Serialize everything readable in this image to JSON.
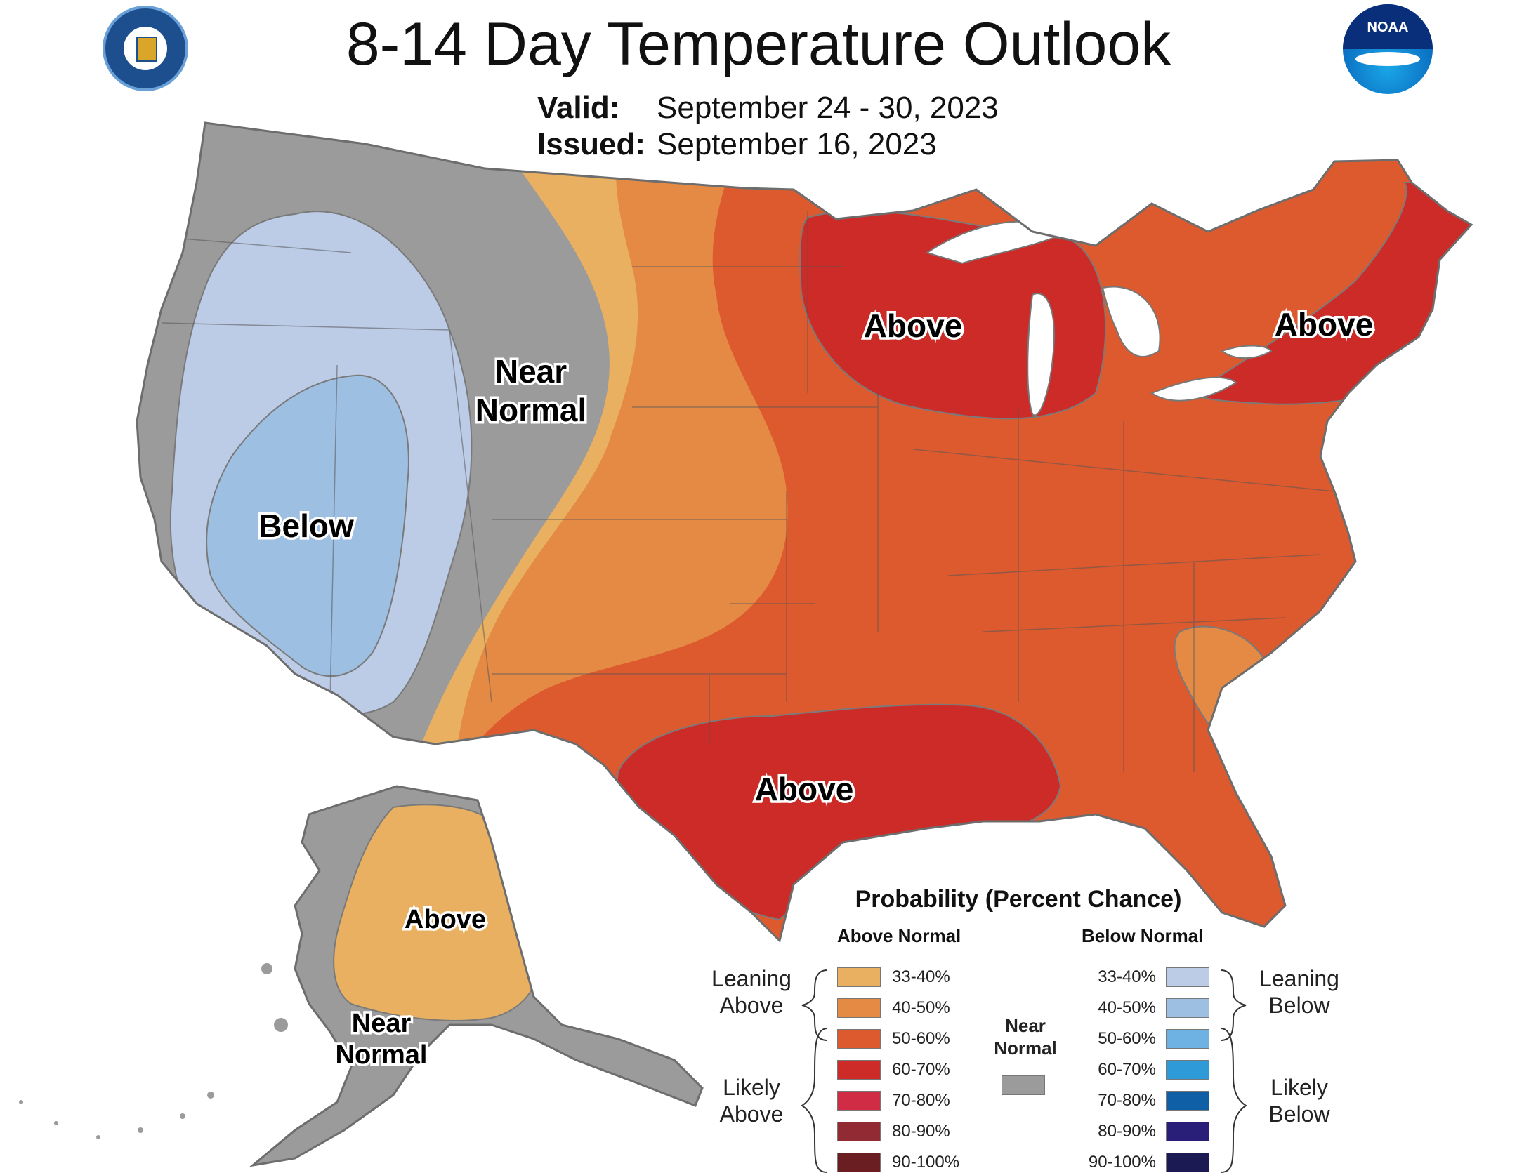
{
  "title": "8-14 Day Temperature Outlook",
  "valid_label": "Valid:",
  "valid_value": "September 24 - 30, 2023",
  "issued_label": "Issued:",
  "issued_value": "September 16, 2023",
  "logos": {
    "left_icon": "department-of-commerce-seal-icon",
    "right_icon": "noaa-logo-icon",
    "noaa_text": "NOAA"
  },
  "map_labels": {
    "below": "Below",
    "near_normal_line1": "Near",
    "near_normal_line2": "Normal",
    "above_midwest": "Above",
    "above_northeast": "Above",
    "above_texas": "Above",
    "alaska_above": "Above",
    "alaska_near_line1": "Near",
    "alaska_near_line2": "Normal"
  },
  "legend": {
    "title": "Probability (Percent Chance)",
    "above_header": "Above Normal",
    "below_header": "Below Normal",
    "near_header_line1": "Near",
    "near_header_line2": "Normal",
    "leaning_above_line1": "Leaning",
    "leaning_above_line2": "Above",
    "likely_above_line1": "Likely",
    "likely_above_line2": "Above",
    "leaning_below_line1": "Leaning",
    "leaning_below_line2": "Below",
    "likely_below_line1": "Likely",
    "likely_below_line2": "Below",
    "above": [
      {
        "label": "33-40%",
        "color": "#E8B060"
      },
      {
        "label": "40-50%",
        "color": "#E58A45"
      },
      {
        "label": "50-60%",
        "color": "#DD5A2E"
      },
      {
        "label": "60-70%",
        "color": "#CC2B28"
      },
      {
        "label": "70-80%",
        "color": "#D02C45"
      },
      {
        "label": "80-90%",
        "color": "#922A33"
      },
      {
        "label": "90-100%",
        "color": "#6A1E22"
      }
    ],
    "below": [
      {
        "label": "33-40%",
        "color": "#BCCBE6"
      },
      {
        "label": "40-50%",
        "color": "#9DBFE2"
      },
      {
        "label": "50-60%",
        "color": "#6DB2E2"
      },
      {
        "label": "60-70%",
        "color": "#2F9AD8"
      },
      {
        "label": "70-80%",
        "color": "#0E5FA6"
      },
      {
        "label": "80-90%",
        "color": "#2A1F78"
      },
      {
        "label": "90-100%",
        "color": "#1C1A52"
      }
    ],
    "near_color": "#9B9B9B"
  }
}
